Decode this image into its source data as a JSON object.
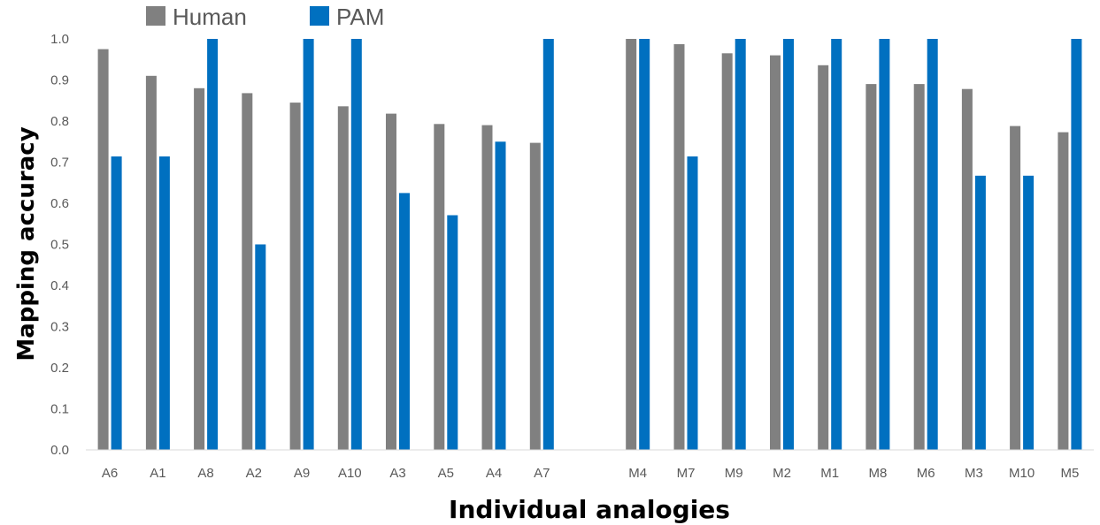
{
  "chart_data": {
    "type": "bar",
    "title": "",
    "xlabel": "Individual analogies",
    "ylabel": "Mapping accuracy",
    "ylim": [
      0,
      1.0
    ],
    "yticks": [
      "0.0",
      "0.1",
      "0.2",
      "0.3",
      "0.4",
      "0.5",
      "0.6",
      "0.7",
      "0.8",
      "0.9",
      "1.0"
    ],
    "grid": false,
    "legend_position": "top-left",
    "categories": [
      "A6",
      "A1",
      "A8",
      "A2",
      "A9",
      "A10",
      "A3",
      "A5",
      "A4",
      "A7",
      "",
      "M4",
      "M7",
      "M9",
      "M2",
      "M1",
      "M8",
      "M6",
      "M3",
      "M10",
      "M5"
    ],
    "series": [
      {
        "name": "Human",
        "color": "#808080",
        "values": [
          0.975,
          0.91,
          0.88,
          0.868,
          0.845,
          0.836,
          0.818,
          0.793,
          0.79,
          0.747,
          null,
          1.0,
          0.987,
          0.965,
          0.96,
          0.936,
          0.89,
          0.89,
          0.878,
          0.788,
          0.773
        ]
      },
      {
        "name": "PAM",
        "color": "#0070C0",
        "values": [
          0.714,
          0.714,
          1.0,
          0.5,
          1.0,
          1.0,
          0.625,
          0.571,
          0.75,
          1.0,
          null,
          1.0,
          0.714,
          1.0,
          1.0,
          1.0,
          1.0,
          1.0,
          0.667,
          0.667,
          1.0
        ]
      }
    ]
  }
}
